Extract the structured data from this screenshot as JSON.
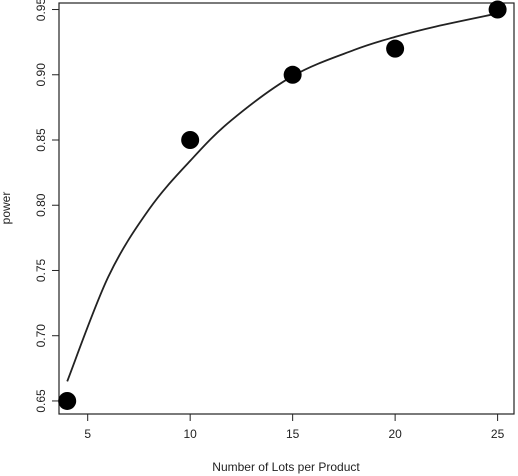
{
  "chart_data": {
    "type": "scatter",
    "title": "",
    "xlabel": "Number of Lots per Product",
    "ylabel": "power",
    "xlim": [
      3.6,
      25.8
    ],
    "ylim": [
      0.64,
      0.955
    ],
    "x_ticks": [
      5,
      10,
      15,
      20,
      25
    ],
    "x_tick_labels": [
      "5",
      "10",
      "15",
      "20",
      "25"
    ],
    "y_ticks": [
      0.65,
      0.7,
      0.75,
      0.8,
      0.85,
      0.9,
      0.95
    ],
    "y_tick_labels": [
      "0.65",
      "0.70",
      "0.75",
      "0.80",
      "0.85",
      "0.90",
      "0.95"
    ],
    "grid": false,
    "series": [
      {
        "points": [
          {
            "x": 4,
            "y": 0.65
          },
          {
            "x": 10,
            "y": 0.85
          },
          {
            "x": 15,
            "y": 0.9
          },
          {
            "x": 20,
            "y": 0.92
          },
          {
            "x": 25,
            "y": 0.95
          }
        ]
      }
    ],
    "fitted_curve": [
      {
        "x": 4,
        "y": 0.665
      },
      {
        "x": 6,
        "y": 0.745
      },
      {
        "x": 8,
        "y": 0.797
      },
      {
        "x": 10,
        "y": 0.834
      },
      {
        "x": 12,
        "y": 0.865
      },
      {
        "x": 15,
        "y": 0.899
      },
      {
        "x": 18,
        "y": 0.919
      },
      {
        "x": 20,
        "y": 0.929
      },
      {
        "x": 22,
        "y": 0.937
      },
      {
        "x": 25,
        "y": 0.947
      }
    ],
    "colors": {
      "point": "#000000",
      "line": "#222222",
      "axis": "#222222"
    }
  }
}
